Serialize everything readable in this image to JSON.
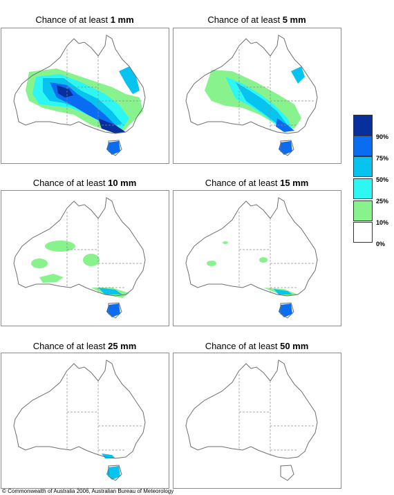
{
  "panels": [
    {
      "prefix": "Chance of at least ",
      "amount": "1 mm"
    },
    {
      "prefix": "Chance of at least ",
      "amount": "5 mm"
    },
    {
      "prefix": "Chance of at least ",
      "amount": "10 mm"
    },
    {
      "prefix": "Chance of at least ",
      "amount": "15 mm"
    },
    {
      "prefix": "Chance of at least ",
      "amount": "25 mm"
    },
    {
      "prefix": "Chance of at least ",
      "amount": "50 mm"
    }
  ],
  "legend": {
    "labels": [
      "90%",
      "75%",
      "50%",
      "25%",
      "10%",
      "0%"
    ],
    "colors": [
      "#082f9c",
      "#0a6cf0",
      "#07c3ef",
      "#2ef6f2",
      "#88f38c",
      "#ffffff"
    ]
  },
  "copyright": "© Commonwealth of Australia 2006, Australian Bureau of Meteorology",
  "colors": {
    "coast": "#6e6e6e",
    "border": "#8a8a8a"
  }
}
